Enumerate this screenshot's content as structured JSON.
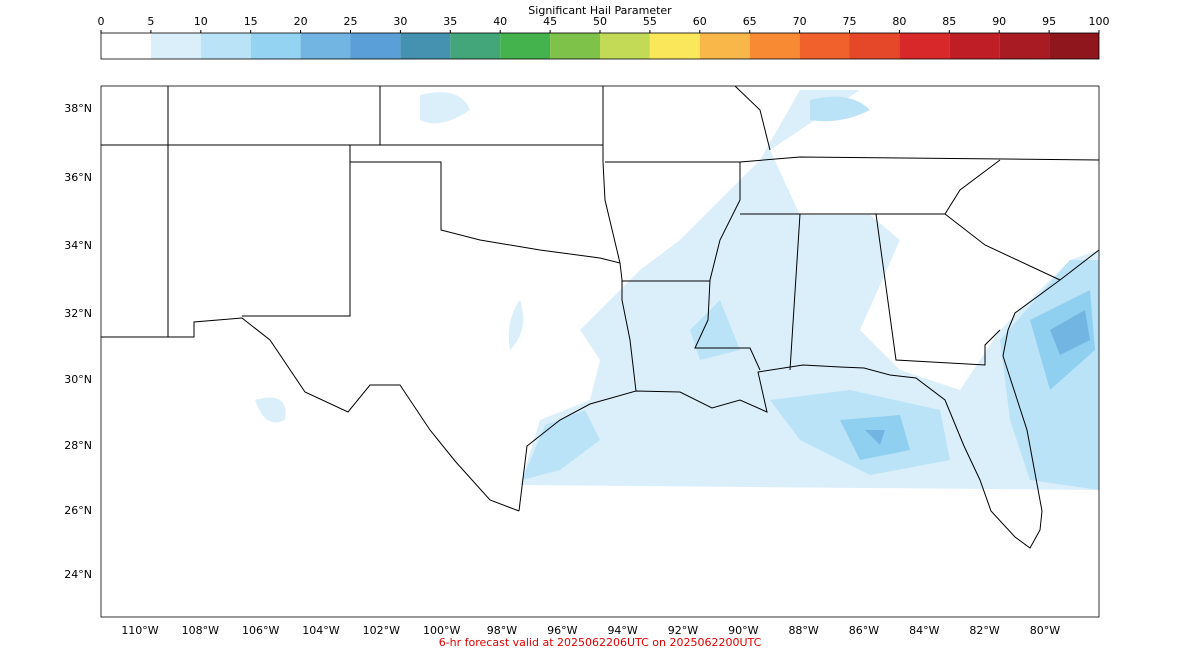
{
  "colorbar": {
    "label": "Significant Hail Parameter",
    "ticks": [
      0,
      5,
      10,
      15,
      20,
      25,
      30,
      35,
      40,
      45,
      50,
      55,
      60,
      65,
      70,
      75,
      80,
      85,
      90,
      95,
      100
    ],
    "colors": [
      "#ffffff",
      "#dbeffb",
      "#bae3f7",
      "#94d3f2",
      "#72b5e2",
      "#5a9fd8",
      "#4592b0",
      "#43a67a",
      "#45b34d",
      "#7fc24a",
      "#c3da57",
      "#fae75a",
      "#f8b748",
      "#f78a33",
      "#f1612b",
      "#e54828",
      "#d8282a",
      "#c01e26",
      "#a81b23",
      "#8f161c"
    ]
  },
  "map": {
    "lat_labels": [
      "38°N",
      "36°N",
      "34°N",
      "32°N",
      "30°N",
      "28°N",
      "26°N",
      "24°N"
    ],
    "lon_labels": [
      "110°W",
      "108°W",
      "106°W",
      "104°W",
      "102°W",
      "100°W",
      "98°W",
      "96°W",
      "94°W",
      "92°W",
      "90°W",
      "88°W",
      "86°W",
      "84°W",
      "82°W",
      "80°W"
    ]
  },
  "footer": "6-hr forecast valid at 2025062206UTC on 2025062200UTC"
}
